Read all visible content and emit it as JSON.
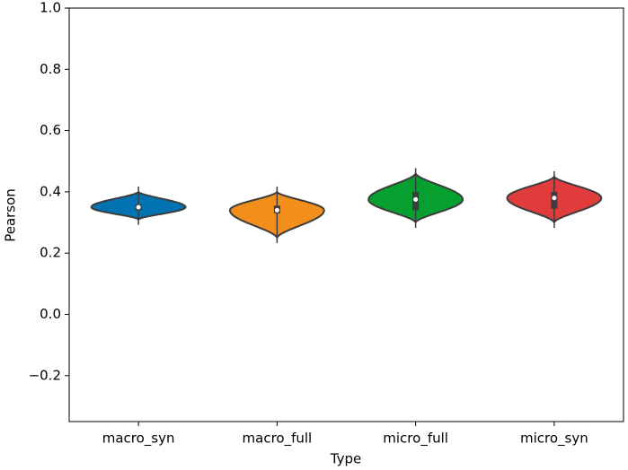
{
  "chart_data": {
    "type": "violin",
    "x_label": "Type",
    "y_label": "Pearson",
    "categories": [
      "macro_syn",
      "macro_full",
      "micro_full",
      "micro_syn"
    ],
    "colors": [
      "#0173b2",
      "#f28e1c",
      "#05a02f",
      "#e03c3c"
    ],
    "stats": [
      {
        "min": 0.31,
        "q1": 0.34,
        "median": 0.35,
        "q3": 0.36,
        "max": 0.4
      },
      {
        "min": 0.25,
        "q1": 0.33,
        "median": 0.34,
        "q3": 0.355,
        "max": 0.4
      },
      {
        "min": 0.3,
        "q1": 0.34,
        "median": 0.375,
        "q3": 0.4,
        "max": 0.46
      },
      {
        "min": 0.3,
        "q1": 0.345,
        "median": 0.38,
        "q3": 0.4,
        "max": 0.45
      }
    ],
    "ylim": [
      -0.35,
      1.0
    ],
    "yticks": [
      {
        "value": -0.2,
        "label": "−0.2"
      },
      {
        "value": 0,
        "label": "0.0"
      },
      0.2,
      0.4,
      0.6,
      0.8,
      {
        "value": 1.0,
        "label": "1.0"
      }
    ]
  }
}
